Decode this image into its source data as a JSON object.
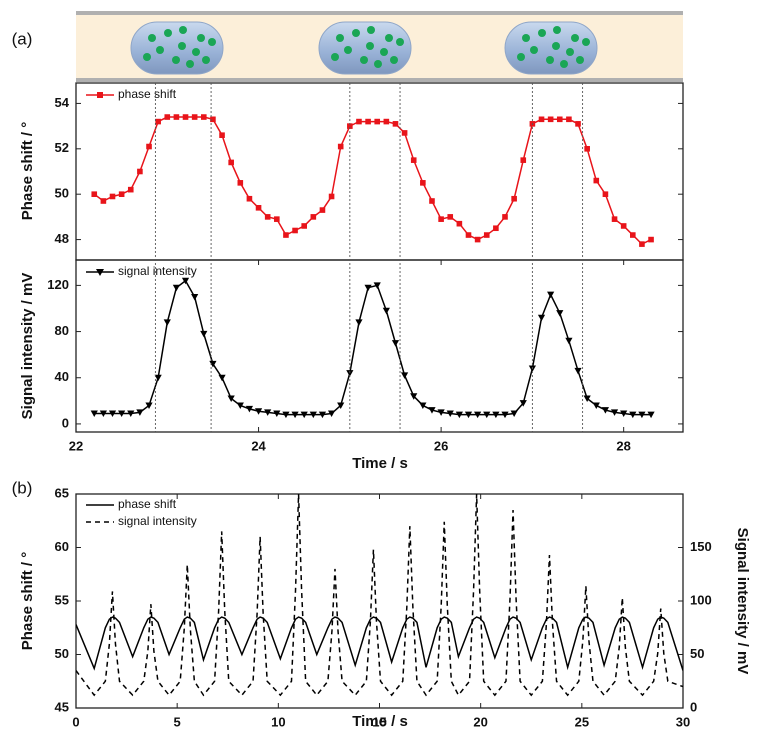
{
  "chart_data": [
    {
      "type": "line",
      "label": "(a)",
      "y_label": "Phase shift / °",
      "x": [
        22.2,
        22.3,
        22.4,
        22.5,
        22.6,
        22.7,
        22.8,
        22.9,
        23.0,
        23.1,
        23.2,
        23.3,
        23.4,
        23.5,
        23.6,
        23.7,
        23.8,
        23.9,
        24.0,
        24.1,
        24.2,
        24.3,
        24.4,
        24.5,
        24.6,
        24.7,
        24.8,
        24.9,
        25.0,
        25.1,
        25.2,
        25.3,
        25.4,
        25.5,
        25.6,
        25.7,
        25.8,
        25.9,
        26.0,
        26.1,
        26.2,
        26.3,
        26.4,
        26.5,
        26.6,
        26.7,
        26.8,
        26.9,
        27.0,
        27.1,
        27.2,
        27.3,
        27.4,
        27.5,
        27.6,
        27.7,
        27.8,
        27.9,
        28.0,
        28.1,
        28.2,
        28.3
      ],
      "series": [
        {
          "name": "phase shift",
          "color": "#e8141a",
          "marker": "square",
          "linestyle": "solid",
          "values": [
            50.0,
            49.7,
            49.9,
            50.0,
            50.2,
            51.0,
            52.1,
            53.2,
            53.4,
            53.4,
            53.4,
            53.4,
            53.4,
            53.3,
            52.6,
            51.4,
            50.5,
            49.8,
            49.4,
            49.0,
            48.9,
            48.2,
            48.4,
            48.6,
            49.0,
            49.3,
            49.9,
            52.1,
            53.0,
            53.2,
            53.2,
            53.2,
            53.2,
            53.1,
            52.7,
            51.5,
            50.5,
            49.7,
            48.9,
            49.0,
            48.7,
            48.2,
            48.0,
            48.2,
            48.5,
            49.0,
            49.8,
            51.5,
            53.1,
            53.3,
            53.3,
            53.3,
            53.3,
            53.1,
            52.0,
            50.6,
            50.0,
            48.9,
            48.6,
            48.2,
            47.8,
            48.0
          ]
        }
      ],
      "xlim": [
        22,
        28.65
      ],
      "ylim": [
        47.1,
        54.9
      ],
      "yticks": [
        48,
        50,
        52,
        54
      ],
      "vlines": [
        22.87,
        23.48,
        25.0,
        25.55,
        27.0,
        27.55
      ]
    },
    {
      "type": "line",
      "x_label": "Time / s",
      "y_label": "Signal intensity / mV",
      "x": [
        22.2,
        22.3,
        22.4,
        22.5,
        22.6,
        22.7,
        22.8,
        22.9,
        23.0,
        23.1,
        23.2,
        23.3,
        23.4,
        23.5,
        23.6,
        23.7,
        23.8,
        23.9,
        24.0,
        24.1,
        24.2,
        24.3,
        24.4,
        24.5,
        24.6,
        24.7,
        24.8,
        24.9,
        25.0,
        25.1,
        25.2,
        25.3,
        25.4,
        25.5,
        25.6,
        25.7,
        25.8,
        25.9,
        26.0,
        26.1,
        26.2,
        26.3,
        26.4,
        26.5,
        26.6,
        26.7,
        26.8,
        26.9,
        27.0,
        27.1,
        27.2,
        27.3,
        27.4,
        27.5,
        27.6,
        27.7,
        27.8,
        27.9,
        28.0,
        28.1,
        28.2,
        28.3
      ],
      "series": [
        {
          "name": "signal intensity",
          "color": "#000000",
          "marker": "triangle-down",
          "linestyle": "solid",
          "values": [
            9,
            9,
            9,
            9,
            9,
            10,
            16,
            40,
            88,
            118,
            124,
            110,
            78,
            52,
            40,
            22,
            16,
            13,
            11,
            10,
            9,
            8,
            8,
            8,
            8,
            8,
            9,
            16,
            44,
            88,
            118,
            120,
            98,
            70,
            42,
            24,
            16,
            12,
            10,
            9,
            8,
            8,
            8,
            8,
            8,
            8,
            9,
            18,
            48,
            92,
            112,
            96,
            72,
            46,
            22,
            16,
            12,
            10,
            9,
            8,
            8,
            8
          ]
        }
      ],
      "xlim": [
        22,
        28.65
      ],
      "xticks": [
        22,
        24,
        26,
        28
      ],
      "ylim": [
        -7,
        142
      ],
      "yticks": [
        0,
        40,
        80,
        120
      ]
    },
    {
      "type": "line",
      "label": "(b)",
      "x_label": "Time / s",
      "y_label": "Phase shift / °",
      "y2_label": "Signal intensity / mV",
      "x": [
        0,
        0.9,
        1.45,
        1.65,
        1.8,
        1.95,
        2.15,
        2.8,
        3.35,
        3.55,
        3.7,
        3.85,
        4.05,
        4.6,
        5.15,
        5.35,
        5.5,
        5.65,
        5.85,
        6.3,
        6.85,
        7.05,
        7.2,
        7.35,
        7.55,
        8.2,
        8.75,
        8.95,
        9.1,
        9.25,
        9.45,
        10.1,
        10.65,
        10.85,
        11.0,
        11.15,
        11.35,
        11.9,
        12.45,
        12.65,
        12.8,
        12.95,
        13.15,
        13.8,
        14.35,
        14.55,
        14.7,
        14.85,
        15.05,
        15.6,
        16.15,
        16.35,
        16.5,
        16.65,
        16.85,
        17.3,
        17.85,
        18.05,
        18.2,
        18.35,
        18.55,
        18.9,
        19.45,
        19.65,
        19.8,
        19.95,
        20.15,
        20.7,
        21.25,
        21.45,
        21.6,
        21.75,
        21.95,
        22.5,
        23.05,
        23.25,
        23.4,
        23.55,
        23.75,
        24.3,
        24.85,
        25.05,
        25.2,
        25.35,
        25.55,
        26.1,
        26.65,
        26.85,
        27.0,
        27.15,
        27.35,
        28.0,
        28.55,
        28.75,
        28.9,
        29.05,
        29.25,
        30
      ],
      "series": [
        {
          "name": "phase shift",
          "color": "#000000",
          "linestyle": "solid",
          "values": [
            52.8,
            48.7,
            52.5,
            53.3,
            53.5,
            53.4,
            53.0,
            49.8,
            52.5,
            53.3,
            53.5,
            53.4,
            53.0,
            50.0,
            52.5,
            53.3,
            53.5,
            53.4,
            53.0,
            49.5,
            52.5,
            53.3,
            53.5,
            53.4,
            53.0,
            50.0,
            52.5,
            53.3,
            53.5,
            53.4,
            53.0,
            49.6,
            52.5,
            53.3,
            53.5,
            53.4,
            53.0,
            50.0,
            52.5,
            53.3,
            53.5,
            53.4,
            53.0,
            49.0,
            52.5,
            53.3,
            53.5,
            53.4,
            53.0,
            49.3,
            52.5,
            53.3,
            53.5,
            53.4,
            53.0,
            48.8,
            52.5,
            53.3,
            53.5,
            53.4,
            53.0,
            49.8,
            52.5,
            53.3,
            53.5,
            53.4,
            53.0,
            49.7,
            52.5,
            53.3,
            53.5,
            53.4,
            53.0,
            49.5,
            52.5,
            53.3,
            53.5,
            53.4,
            53.0,
            48.8,
            52.5,
            53.3,
            53.5,
            53.4,
            53.0,
            49.0,
            52.5,
            53.3,
            53.5,
            53.4,
            53.0,
            48.8,
            52.5,
            53.3,
            53.5,
            53.4,
            53.0,
            48.5
          ]
        },
        {
          "name": "signal intensity",
          "color": "#000000",
          "linestyle": "dashed",
          "axis": "y2",
          "values": [
            35,
            12,
            25,
            60,
            109,
            60,
            25,
            12,
            25,
            53,
            97,
            53,
            25,
            12,
            25,
            74,
            134,
            74,
            25,
            12,
            25,
            91,
            165,
            91,
            25,
            12,
            25,
            88,
            160,
            88,
            25,
            12,
            25,
            110,
            200,
            110,
            25,
            12,
            25,
            72,
            130,
            72,
            25,
            12,
            25,
            81,
            148,
            81,
            25,
            12,
            25,
            94,
            170,
            94,
            25,
            12,
            25,
            96,
            174,
            96,
            25,
            12,
            25,
            110,
            200,
            110,
            25,
            12,
            25,
            102,
            185,
            102,
            25,
            12,
            25,
            79,
            143,
            79,
            25,
            12,
            25,
            63,
            114,
            63,
            25,
            12,
            25,
            57,
            103,
            57,
            25,
            12,
            25,
            51,
            93,
            51,
            25,
            20
          ]
        }
      ],
      "xlim": [
        0,
        30
      ],
      "xticks": [
        0,
        5,
        10,
        15,
        20,
        25,
        30
      ],
      "ylim": [
        45,
        65
      ],
      "yticks": [
        45,
        50,
        55,
        60,
        65
      ],
      "y2lim": [
        0,
        200
      ],
      "y2ticks": [
        0,
        50,
        100,
        150
      ]
    }
  ]
}
